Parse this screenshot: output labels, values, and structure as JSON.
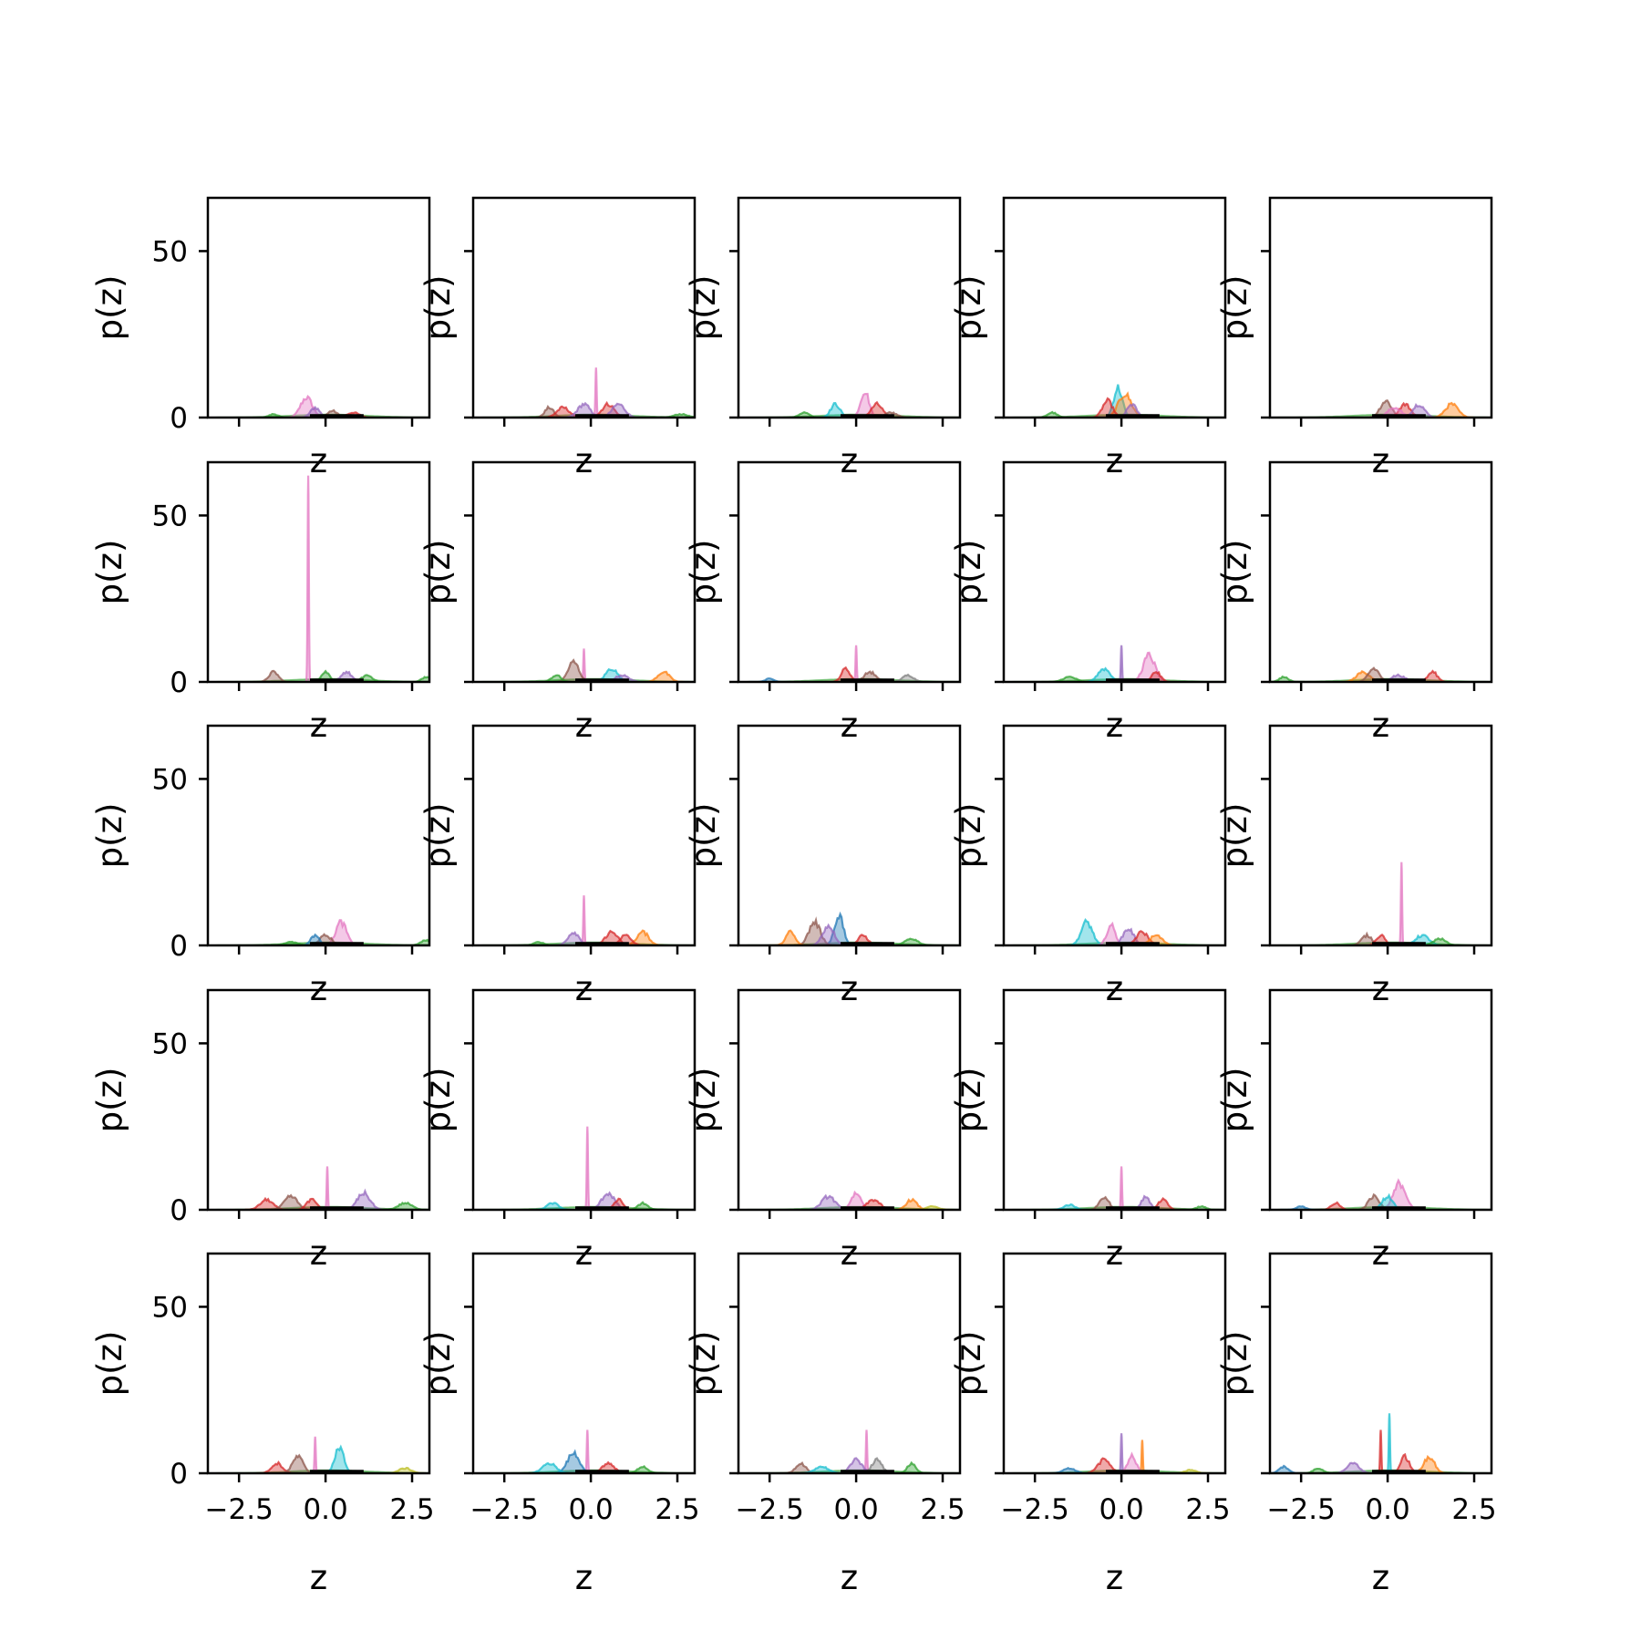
{
  "chart_data": {
    "type": "area",
    "layout": {
      "rows": 5,
      "cols": 5
    },
    "xlabel": "z",
    "ylabel": "p(z)",
    "xlim": [
      -3.4,
      3.0
    ],
    "ylim": [
      0,
      66
    ],
    "xticks": [
      -2.5,
      0.0,
      2.5
    ],
    "xtick_labels": [
      "−2.5",
      "0.0",
      "2.5"
    ],
    "yticks": [
      0,
      50
    ],
    "ytick_labels": [
      "0",
      "50"
    ],
    "grid": false,
    "legend": "none",
    "palette": [
      "#1f77b4",
      "#ff7f0e",
      "#2ca02c",
      "#d62728",
      "#9467bd",
      "#8c564b",
      "#e377c2",
      "#7f7f7f",
      "#bcbd22",
      "#17becf"
    ],
    "panels": [
      {
        "peaks": [
          {
            "x": -0.55,
            "y": 6,
            "c": 6
          },
          {
            "x": -0.3,
            "y": 3,
            "c": 4
          },
          {
            "x": 0.2,
            "y": 2,
            "c": 5
          },
          {
            "x": -1.5,
            "y": 1,
            "c": 2
          },
          {
            "x": 0.8,
            "y": 1.5,
            "c": 3
          }
        ]
      },
      {
        "peaks": [
          {
            "x": 0.15,
            "y": 15,
            "c": 6
          },
          {
            "x": -1.2,
            "y": 3,
            "c": 5
          },
          {
            "x": -0.8,
            "y": 3,
            "c": 3
          },
          {
            "x": -0.2,
            "y": 4,
            "c": 4
          },
          {
            "x": 0.5,
            "y": 4,
            "c": 3
          },
          {
            "x": 0.8,
            "y": 4,
            "c": 4
          },
          {
            "x": 2.6,
            "y": 1,
            "c": 2
          }
        ]
      },
      {
        "peaks": [
          {
            "x": 0.25,
            "y": 8,
            "c": 6
          },
          {
            "x": -0.6,
            "y": 4,
            "c": 9
          },
          {
            "x": 0.6,
            "y": 4,
            "c": 3
          },
          {
            "x": -1.5,
            "y": 1.5,
            "c": 2
          },
          {
            "x": 1.0,
            "y": 1.5,
            "c": 5
          }
        ]
      },
      {
        "peaks": [
          {
            "x": -0.1,
            "y": 9,
            "c": 9
          },
          {
            "x": 0.1,
            "y": 7,
            "c": 1
          },
          {
            "x": -0.4,
            "y": 5,
            "c": 3
          },
          {
            "x": 0.3,
            "y": 4,
            "c": 4
          },
          {
            "x": -2.0,
            "y": 1.5,
            "c": 2
          }
        ]
      },
      {
        "peaks": [
          {
            "x": 1.85,
            "y": 4,
            "c": 1
          },
          {
            "x": -0.05,
            "y": 5,
            "c": 5
          },
          {
            "x": 0.5,
            "y": 4,
            "c": 3
          },
          {
            "x": 0.9,
            "y": 4,
            "c": 4
          },
          {
            "x": 0.2,
            "y": 3,
            "c": 6
          }
        ]
      },
      {
        "peaks": [
          {
            "x": -0.5,
            "y": 62,
            "c": 6
          },
          {
            "x": -1.5,
            "y": 3,
            "c": 5
          },
          {
            "x": 0.0,
            "y": 3,
            "c": 2
          },
          {
            "x": 0.6,
            "y": 3,
            "c": 4
          },
          {
            "x": 1.2,
            "y": 2,
            "c": 2
          },
          {
            "x": 2.9,
            "y": 1.5,
            "c": 2
          }
        ]
      },
      {
        "peaks": [
          {
            "x": -0.2,
            "y": 10,
            "c": 6
          },
          {
            "x": -0.5,
            "y": 6,
            "c": 5
          },
          {
            "x": 0.6,
            "y": 4,
            "c": 9
          },
          {
            "x": 2.1,
            "y": 3,
            "c": 1
          },
          {
            "x": -1.0,
            "y": 2,
            "c": 2
          },
          {
            "x": 0.9,
            "y": 2,
            "c": 4
          }
        ]
      },
      {
        "peaks": [
          {
            "x": 0.0,
            "y": 11,
            "c": 6
          },
          {
            "x": -0.3,
            "y": 4,
            "c": 3
          },
          {
            "x": 0.4,
            "y": 3,
            "c": 5
          },
          {
            "x": 1.5,
            "y": 2,
            "c": 7
          },
          {
            "x": -2.5,
            "y": 1,
            "c": 0
          }
        ]
      },
      {
        "peaks": [
          {
            "x": 0.0,
            "y": 11,
            "c": 4
          },
          {
            "x": 0.8,
            "y": 8,
            "c": 6
          },
          {
            "x": -0.5,
            "y": 4,
            "c": 9
          },
          {
            "x": 1.0,
            "y": 3,
            "c": 3
          },
          {
            "x": -1.5,
            "y": 1.5,
            "c": 2
          }
        ]
      },
      {
        "peaks": [
          {
            "x": -0.7,
            "y": 3,
            "c": 1
          },
          {
            "x": -0.4,
            "y": 4,
            "c": 5
          },
          {
            "x": 1.3,
            "y": 3,
            "c": 3
          },
          {
            "x": 0.3,
            "y": 2,
            "c": 4
          },
          {
            "x": -3.0,
            "y": 1.5,
            "c": 2
          }
        ]
      },
      {
        "peaks": [
          {
            "x": 0.45,
            "y": 7,
            "c": 6
          },
          {
            "x": 0.0,
            "y": 3,
            "c": 5
          },
          {
            "x": -0.3,
            "y": 3,
            "c": 0
          },
          {
            "x": -1.0,
            "y": 1,
            "c": 2
          },
          {
            "x": 2.9,
            "y": 1.5,
            "c": 2
          }
        ]
      },
      {
        "peaks": [
          {
            "x": -0.2,
            "y": 15,
            "c": 6
          },
          {
            "x": 1.5,
            "y": 4,
            "c": 1
          },
          {
            "x": -0.5,
            "y": 4,
            "c": 4
          },
          {
            "x": 0.6,
            "y": 4,
            "c": 3
          },
          {
            "x": 1.0,
            "y": 3,
            "c": 3
          },
          {
            "x": -1.5,
            "y": 1,
            "c": 2
          }
        ]
      },
      {
        "peaks": [
          {
            "x": -0.5,
            "y": 9,
            "c": 0
          },
          {
            "x": -1.2,
            "y": 7,
            "c": 5
          },
          {
            "x": -1.9,
            "y": 4,
            "c": 1
          },
          {
            "x": -0.8,
            "y": 6,
            "c": 4
          },
          {
            "x": 0.2,
            "y": 3,
            "c": 3
          },
          {
            "x": 1.6,
            "y": 2,
            "c": 2
          }
        ]
      },
      {
        "peaks": [
          {
            "x": -1.0,
            "y": 7,
            "c": 9
          },
          {
            "x": -0.3,
            "y": 6,
            "c": 6
          },
          {
            "x": 0.2,
            "y": 5,
            "c": 4
          },
          {
            "x": 0.6,
            "y": 4,
            "c": 3
          },
          {
            "x": 1.0,
            "y": 3,
            "c": 1
          }
        ]
      },
      {
        "peaks": [
          {
            "x": 0.4,
            "y": 25,
            "c": 6
          },
          {
            "x": -0.6,
            "y": 3,
            "c": 5
          },
          {
            "x": 1.0,
            "y": 3,
            "c": 9
          },
          {
            "x": 1.5,
            "y": 2,
            "c": 2
          },
          {
            "x": -0.2,
            "y": 3,
            "c": 3
          }
        ]
      },
      {
        "peaks": [
          {
            "x": 0.05,
            "y": 13,
            "c": 6
          },
          {
            "x": 1.1,
            "y": 5,
            "c": 4
          },
          {
            "x": -1.7,
            "y": 3,
            "c": 3
          },
          {
            "x": -1.0,
            "y": 4,
            "c": 5
          },
          {
            "x": 2.3,
            "y": 2,
            "c": 2
          },
          {
            "x": -0.4,
            "y": 3,
            "c": 3
          }
        ]
      },
      {
        "peaks": [
          {
            "x": -0.1,
            "y": 25,
            "c": 6
          },
          {
            "x": 0.5,
            "y": 5,
            "c": 4
          },
          {
            "x": -1.1,
            "y": 2,
            "c": 9
          },
          {
            "x": 0.8,
            "y": 3,
            "c": 3
          },
          {
            "x": 1.5,
            "y": 2,
            "c": 2
          }
        ]
      },
      {
        "peaks": [
          {
            "x": 0.0,
            "y": 5,
            "c": 6
          },
          {
            "x": -0.8,
            "y": 4,
            "c": 4
          },
          {
            "x": 1.6,
            "y": 3,
            "c": 1
          },
          {
            "x": 0.5,
            "y": 3,
            "c": 3
          },
          {
            "x": 2.2,
            "y": 1,
            "c": 8
          }
        ]
      },
      {
        "peaks": [
          {
            "x": 0.0,
            "y": 13,
            "c": 6
          },
          {
            "x": -0.5,
            "y": 4,
            "c": 5
          },
          {
            "x": 0.7,
            "y": 4,
            "c": 4
          },
          {
            "x": 1.2,
            "y": 3,
            "c": 3
          },
          {
            "x": -1.5,
            "y": 1.5,
            "c": 9
          },
          {
            "x": 2.3,
            "y": 1,
            "c": 2
          }
        ]
      },
      {
        "peaks": [
          {
            "x": 0.35,
            "y": 8,
            "c": 6
          },
          {
            "x": -0.4,
            "y": 4,
            "c": 5
          },
          {
            "x": 0.0,
            "y": 4,
            "c": 9
          },
          {
            "x": -1.5,
            "y": 2,
            "c": 3
          },
          {
            "x": -2.5,
            "y": 1,
            "c": 0
          }
        ]
      },
      {
        "peaks": [
          {
            "x": -0.3,
            "y": 11,
            "c": 6
          },
          {
            "x": 0.4,
            "y": 8,
            "c": 9
          },
          {
            "x": -1.4,
            "y": 3,
            "c": 3
          },
          {
            "x": -0.8,
            "y": 5,
            "c": 5
          },
          {
            "x": 2.3,
            "y": 1.5,
            "c": 8
          }
        ]
      },
      {
        "peaks": [
          {
            "x": -0.1,
            "y": 13,
            "c": 6
          },
          {
            "x": -0.5,
            "y": 6,
            "c": 0
          },
          {
            "x": -1.2,
            "y": 3,
            "c": 9
          },
          {
            "x": 0.5,
            "y": 3,
            "c": 3
          },
          {
            "x": 1.5,
            "y": 2,
            "c": 2
          }
        ]
      },
      {
        "peaks": [
          {
            "x": 0.3,
            "y": 13,
            "c": 6
          },
          {
            "x": 0.0,
            "y": 4,
            "c": 4
          },
          {
            "x": -1.6,
            "y": 3,
            "c": 5
          },
          {
            "x": -1.0,
            "y": 2,
            "c": 9
          },
          {
            "x": 1.6,
            "y": 3,
            "c": 2
          },
          {
            "x": 0.6,
            "y": 4,
            "c": 7
          }
        ]
      },
      {
        "peaks": [
          {
            "x": 0.0,
            "y": 12,
            "c": 4
          },
          {
            "x": 0.6,
            "y": 10,
            "c": 1
          },
          {
            "x": -0.5,
            "y": 4,
            "c": 3
          },
          {
            "x": 0.3,
            "y": 5,
            "c": 6
          },
          {
            "x": -1.5,
            "y": 1.5,
            "c": 0
          },
          {
            "x": 2.0,
            "y": 1,
            "c": 8
          }
        ]
      },
      {
        "peaks": [
          {
            "x": 0.05,
            "y": 18,
            "c": 9
          },
          {
            "x": -0.2,
            "y": 13,
            "c": 3
          },
          {
            "x": 1.2,
            "y": 5,
            "c": 1
          },
          {
            "x": 0.5,
            "y": 5,
            "c": 3
          },
          {
            "x": -1.0,
            "y": 3,
            "c": 4
          },
          {
            "x": -3.0,
            "y": 2,
            "c": 0
          },
          {
            "x": -2.0,
            "y": 1.5,
            "c": 2
          }
        ]
      }
    ]
  }
}
